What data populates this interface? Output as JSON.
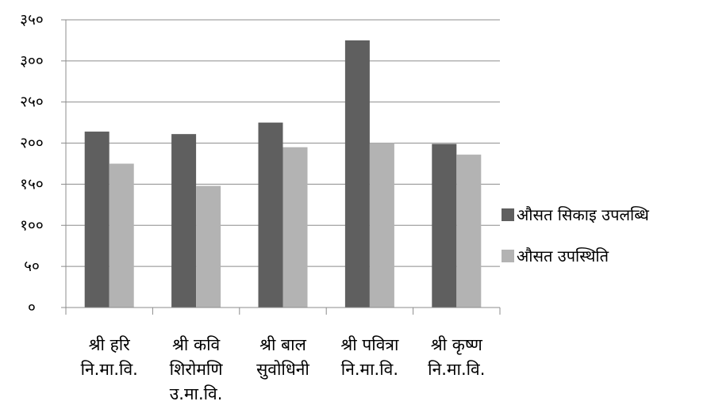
{
  "chart_data": {
    "type": "bar",
    "categories": [
      [
        "श्री हरि",
        "नि.मा.वि."
      ],
      [
        "श्री कवि",
        "शिरोमणि",
        "उ.मा.वि."
      ],
      [
        "श्री बाल",
        "सुवोधिनी"
      ],
      [
        "श्री पवित्रा",
        "नि.मा.वि."
      ],
      [
        "श्री कृष्ण",
        "नि.मा.वि."
      ]
    ],
    "series": [
      {
        "name": "औसत सिकाइ उपलब्धि",
        "color": "#5f5f5f",
        "values": [
          214,
          211,
          225,
          325,
          199
        ]
      },
      {
        "name": "औसत उपस्थिति",
        "color": "#b3b3b3",
        "values": [
          175,
          148,
          195,
          200,
          186
        ]
      }
    ],
    "ylim": [
      0,
      350
    ],
    "yticks": [
      0,
      50,
      100,
      150,
      200,
      250,
      300,
      350
    ],
    "ytick_labels": [
      "०",
      "५०",
      "१००",
      "१५०",
      "२००",
      "२५०",
      "३००",
      "३५०"
    ],
    "grid": true,
    "legend_position": "right"
  }
}
